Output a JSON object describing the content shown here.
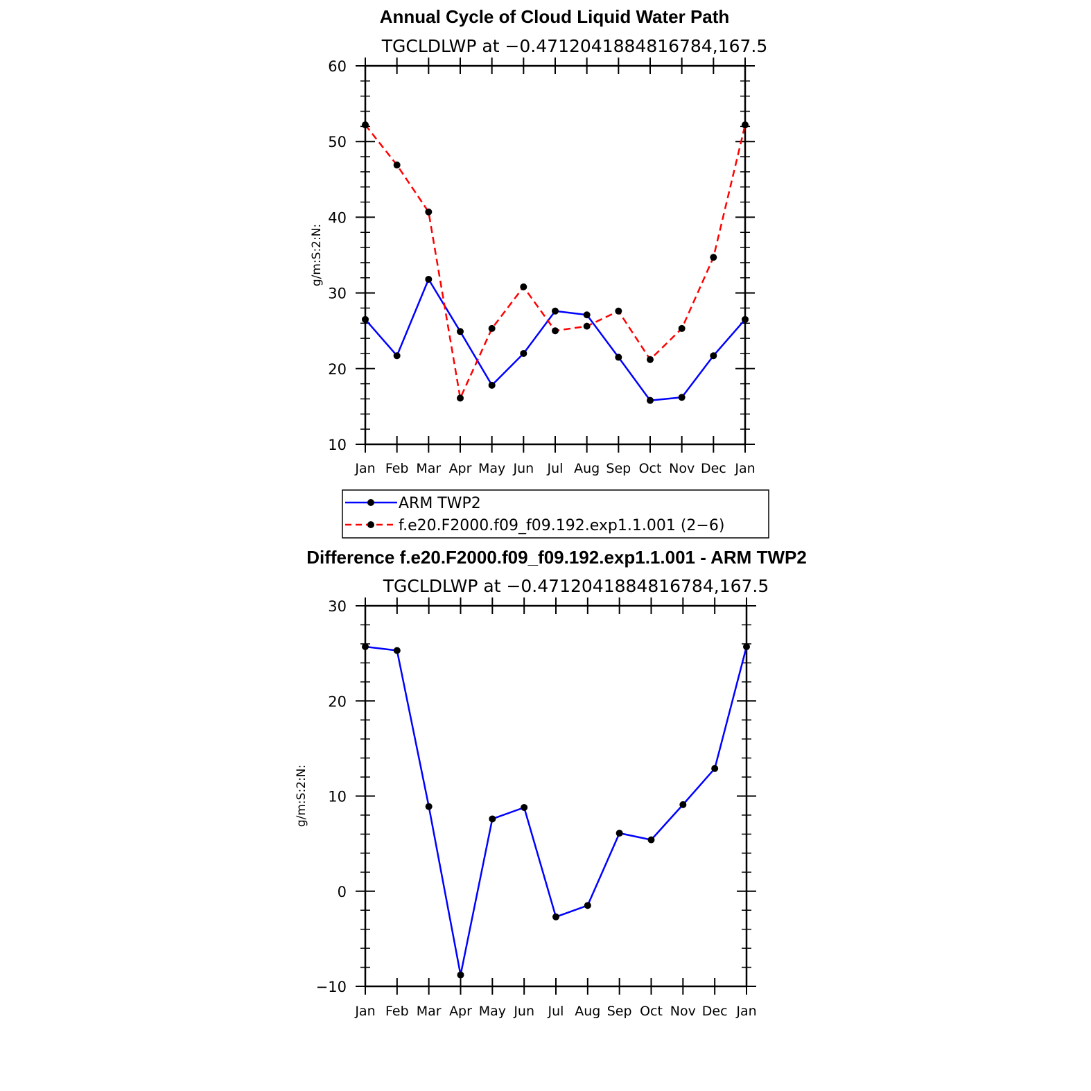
{
  "chart_data": [
    {
      "type": "line",
      "title": "Annual Cycle of Cloud Liquid Water Path",
      "subtitle": "TGCLDLWP at −0.4712041884816784,167.5",
      "xlabel": "",
      "ylabel": "g/m:S:2:N:",
      "categories": [
        "Jan",
        "Feb",
        "Mar",
        "Apr",
        "May",
        "Jun",
        "Jul",
        "Aug",
        "Sep",
        "Oct",
        "Nov",
        "Dec",
        "Jan"
      ],
      "ylim": [
        10,
        60
      ],
      "yticks": [
        10,
        20,
        30,
        40,
        50,
        60
      ],
      "ytick_labels": [
        "10",
        "20",
        "30",
        "40",
        "50",
        "60"
      ],
      "legend_position": "below",
      "series": [
        {
          "name": "ARM TWP2",
          "color": "#0000ff",
          "dash": "solid",
          "marker": "dot",
          "values": [
            26.5,
            21.7,
            31.8,
            24.9,
            17.8,
            22.0,
            27.6,
            27.1,
            21.5,
            15.8,
            16.2,
            21.7,
            26.5
          ]
        },
        {
          "name": "f.e20.F2000.f09_f09.192.exp1.1.001 (2−6)",
          "color": "#ff0000",
          "dash": "dashed",
          "marker": "dot",
          "values": [
            52.2,
            46.9,
            40.7,
            16.1,
            25.3,
            30.8,
            25.0,
            25.6,
            27.6,
            21.2,
            25.3,
            34.7,
            52.2
          ]
        }
      ]
    },
    {
      "type": "line",
      "title": "Difference f.e20.F2000.f09_f09.192.exp1.1.001 - ARM TWP2",
      "subtitle": "TGCLDLWP at −0.4712041884816784,167.5",
      "xlabel": "",
      "ylabel": "g/m:S:2:N:",
      "categories": [
        "Jan",
        "Feb",
        "Mar",
        "Apr",
        "May",
        "Jun",
        "Jul",
        "Aug",
        "Sep",
        "Oct",
        "Nov",
        "Dec",
        "Jan"
      ],
      "ylim": [
        -10,
        30
      ],
      "yticks": [
        -10,
        0,
        10,
        20,
        30
      ],
      "ytick_labels": [
        "−10",
        "0",
        "10",
        "20",
        "30"
      ],
      "series": [
        {
          "name": "",
          "color": "#0000ff",
          "dash": "solid",
          "marker": "dot",
          "values": [
            25.7,
            25.3,
            8.9,
            -8.8,
            7.6,
            8.8,
            -2.7,
            -1.5,
            6.1,
            5.4,
            9.1,
            12.9,
            25.7
          ]
        }
      ]
    }
  ]
}
